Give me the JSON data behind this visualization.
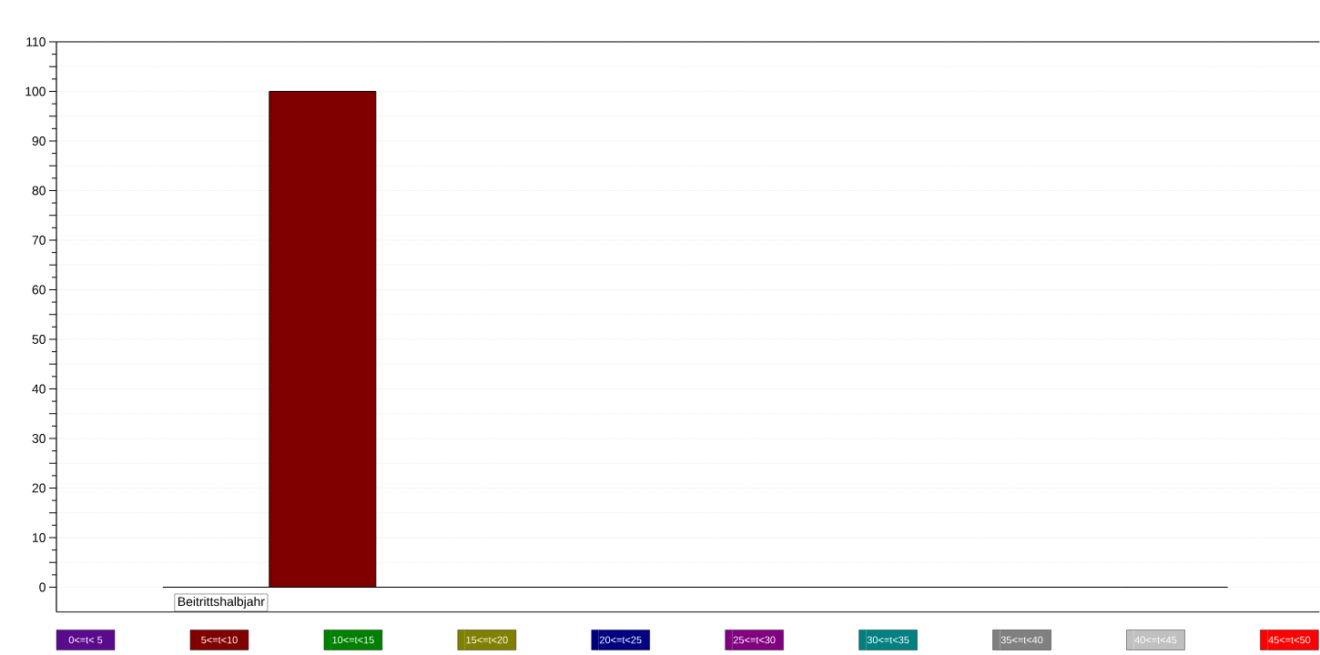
{
  "chart_data": {
    "type": "bar",
    "categories": [
      "Beitrittshalbjahr"
    ],
    "series": [
      {
        "name": "0<=t< 5",
        "color": "#5a0a8c",
        "values": [
          0
        ]
      },
      {
        "name": "5<=t<10",
        "color": "#800000",
        "values": [
          100
        ]
      },
      {
        "name": "10<=t<15",
        "color": "#008000",
        "values": [
          0
        ]
      },
      {
        "name": "15<=t<20",
        "color": "#808000",
        "values": [
          0
        ]
      },
      {
        "name": "20<=t<25",
        "color": "#000080",
        "values": [
          0
        ]
      },
      {
        "name": "25<=t<30",
        "color": "#800080",
        "values": [
          0
        ]
      },
      {
        "name": "30<=t<35",
        "color": "#008080",
        "values": [
          0
        ]
      },
      {
        "name": "35<=t<40",
        "color": "#808080",
        "values": [
          0
        ]
      },
      {
        "name": "40<=t<45",
        "color": "#c0c0c0",
        "values": [
          0
        ]
      },
      {
        "name": "45<=t<50",
        "color": "#ff0000",
        "values": [
          0
        ]
      }
    ],
    "ylim": [
      -5,
      110
    ],
    "yticks": [
      0,
      {
        "value": 5,
        "label": null
      },
      10,
      {
        "value": 15,
        "label": null
      },
      20,
      {
        "value": 25,
        "label": null
      },
      30,
      {
        "value": 35,
        "label": null
      },
      40,
      {
        "value": 45,
        "label": null
      },
      50,
      {
        "value": 55,
        "label": null
      },
      60,
      {
        "value": 65,
        "label": null
      },
      70,
      {
        "value": 75,
        "label": null
      },
      80,
      {
        "value": 85,
        "label": null
      },
      90,
      {
        "value": 95,
        "label": null
      },
      100,
      {
        "value": 105,
        "label": null
      },
      110
    ],
    "grid": "y",
    "legend": "bottom"
  }
}
